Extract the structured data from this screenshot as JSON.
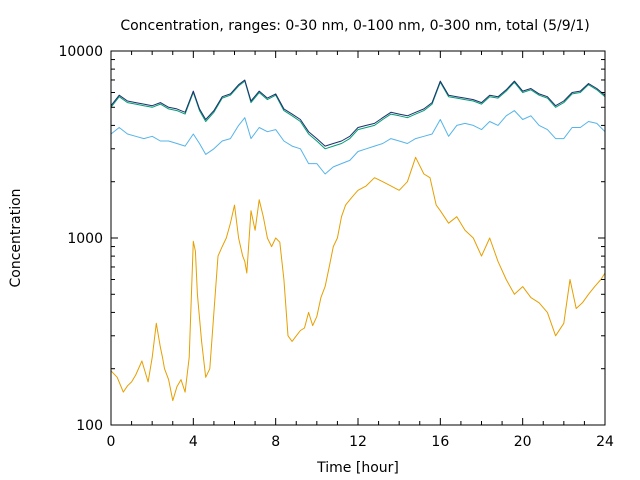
{
  "chart_data": {
    "type": "line",
    "title": "Concentration, ranges: 0-30 nm, 0-100 nm, 0-300 nm, total (5/9/1)",
    "xlabel": "Time [hour]",
    "ylabel": "Concentration",
    "xlim": [
      0,
      24
    ],
    "ylim": [
      100,
      10000
    ],
    "yscale": "log",
    "grid": false,
    "legend": "none",
    "xticks": [
      "0",
      "4",
      "8",
      "12",
      "16",
      "20",
      "24"
    ],
    "yticks": [
      "100",
      "1000",
      "10000"
    ],
    "series": [
      {
        "color": "#e69f00",
        "x": [
          0,
          0.3,
          0.6,
          0.8,
          1.0,
          1.2,
          1.5,
          1.8,
          2.0,
          2.2,
          2.4,
          2.5,
          2.6,
          2.8,
          3.0,
          3.2,
          3.4,
          3.6,
          3.8,
          4.0,
          4.1,
          4.2,
          4.4,
          4.6,
          4.8,
          5.0,
          5.2,
          5.4,
          5.6,
          5.8,
          6.0,
          6.2,
          6.4,
          6.5,
          6.6,
          6.8,
          7.0,
          7.2,
          7.4,
          7.6,
          7.8,
          8.0,
          8.2,
          8.4,
          8.6,
          8.8,
          9.0,
          9.2,
          9.4,
          9.6,
          9.8,
          10.0,
          10.2,
          10.4,
          10.6,
          10.8,
          11.0,
          11.2,
          11.4,
          11.6,
          11.8,
          12.0,
          12.4,
          12.8,
          13.2,
          13.6,
          14.0,
          14.4,
          14.8,
          15.2,
          15.5,
          15.8,
          16.0,
          16.4,
          16.8,
          17.2,
          17.6,
          18.0,
          18.4,
          18.8,
          19.2,
          19.6,
          20.0,
          20.4,
          20.8,
          21.2,
          21.6,
          22.0,
          22.3,
          22.6,
          22.9,
          23.2,
          23.5,
          23.8,
          24.0
        ],
        "y": [
          195,
          180,
          150,
          162,
          170,
          185,
          220,
          170,
          230,
          350,
          260,
          230,
          200,
          175,
          135,
          160,
          175,
          150,
          230,
          960,
          850,
          500,
          280,
          180,
          200,
          400,
          800,
          900,
          1000,
          1200,
          1500,
          1000,
          800,
          750,
          650,
          1400,
          1100,
          1600,
          1300,
          1000,
          900,
          1000,
          950,
          600,
          300,
          280,
          300,
          320,
          330,
          400,
          340,
          380,
          480,
          550,
          700,
          900,
          1000,
          1300,
          1500,
          1600,
          1700,
          1800,
          1900,
          2100,
          2000,
          1900,
          1800,
          2000,
          2700,
          2200,
          2100,
          1500,
          1400,
          1200,
          1300,
          1100,
          1000,
          800,
          1000,
          750,
          600,
          500,
          550,
          480,
          450,
          400,
          300,
          350,
          600,
          420,
          450,
          500,
          550,
          600,
          650
        ]
      },
      {
        "color": "#56b4e9",
        "x": [
          0,
          0.4,
          0.8,
          1.2,
          1.6,
          2.0,
          2.4,
          2.8,
          3.2,
          3.6,
          4.0,
          4.3,
          4.6,
          5.0,
          5.4,
          5.8,
          6.2,
          6.5,
          6.8,
          7.2,
          7.6,
          8.0,
          8.4,
          8.8,
          9.2,
          9.6,
          10.0,
          10.4,
          10.8,
          11.2,
          11.6,
          12.0,
          12.4,
          12.8,
          13.2,
          13.6,
          14.0,
          14.4,
          14.8,
          15.2,
          15.6,
          16.0,
          16.4,
          16.8,
          17.2,
          17.6,
          18.0,
          18.4,
          18.8,
          19.2,
          19.6,
          20.0,
          20.4,
          20.8,
          21.2,
          21.6,
          22.0,
          22.4,
          22.8,
          23.2,
          23.6,
          24.0
        ],
        "y": [
          3600,
          3900,
          3600,
          3500,
          3400,
          3500,
          3300,
          3300,
          3200,
          3100,
          3600,
          3200,
          2800,
          3000,
          3300,
          3400,
          4000,
          4400,
          3400,
          3900,
          3700,
          3800,
          3300,
          3100,
          3000,
          2500,
          2500,
          2200,
          2400,
          2500,
          2600,
          2900,
          3000,
          3100,
          3200,
          3400,
          3300,
          3200,
          3400,
          3500,
          3600,
          4300,
          3500,
          4000,
          4100,
          4000,
          3800,
          4200,
          4000,
          4500,
          4800,
          4300,
          4500,
          4000,
          3800,
          3400,
          3400,
          3900,
          3900,
          4200,
          4100,
          3700
        ]
      },
      {
        "color": "#009e73",
        "x": [
          0,
          0.4,
          0.8,
          1.2,
          1.6,
          2.0,
          2.4,
          2.8,
          3.2,
          3.6,
          4.0,
          4.3,
          4.6,
          5.0,
          5.4,
          5.8,
          6.2,
          6.5,
          6.8,
          7.2,
          7.6,
          8.0,
          8.4,
          8.8,
          9.2,
          9.6,
          10.0,
          10.4,
          10.8,
          11.2,
          11.6,
          12.0,
          12.4,
          12.8,
          13.2,
          13.6,
          14.0,
          14.4,
          14.8,
          15.2,
          15.6,
          16.0,
          16.4,
          16.8,
          17.2,
          17.6,
          18.0,
          18.4,
          18.8,
          19.2,
          19.6,
          20.0,
          20.4,
          20.8,
          21.2,
          21.6,
          22.0,
          22.4,
          22.8,
          23.2,
          23.6,
          24.0
        ],
        "y": [
          5000,
          5700,
          5300,
          5200,
          5100,
          5000,
          5200,
          4900,
          4800,
          4600,
          6000,
          4800,
          4200,
          4700,
          5600,
          5800,
          6500,
          6900,
          5300,
          6000,
          5500,
          5800,
          4800,
          4500,
          4200,
          3600,
          3300,
          3000,
          3100,
          3200,
          3400,
          3800,
          3900,
          4000,
          4300,
          4600,
          4500,
          4400,
          4600,
          4800,
          5200,
          6800,
          5700,
          5600,
          5500,
          5400,
          5200,
          5700,
          5600,
          6100,
          6800,
          6000,
          6200,
          5800,
          5600,
          5000,
          5300,
          5900,
          6000,
          6600,
          6200,
          5700
        ]
      },
      {
        "color": "#1f2f6f",
        "x": [
          0,
          0.4,
          0.8,
          1.2,
          1.6,
          2.0,
          2.4,
          2.8,
          3.2,
          3.6,
          4.0,
          4.3,
          4.6,
          5.0,
          5.4,
          5.8,
          6.2,
          6.5,
          6.8,
          7.2,
          7.6,
          8.0,
          8.4,
          8.8,
          9.2,
          9.6,
          10.0,
          10.4,
          10.8,
          11.2,
          11.6,
          12.0,
          12.4,
          12.8,
          13.2,
          13.6,
          14.0,
          14.4,
          14.8,
          15.2,
          15.6,
          16.0,
          16.4,
          16.8,
          17.2,
          17.6,
          18.0,
          18.4,
          18.8,
          19.2,
          19.6,
          20.0,
          20.4,
          20.8,
          21.2,
          21.6,
          22.0,
          22.4,
          22.8,
          23.2,
          23.6,
          24.0
        ],
        "y": [
          5100,
          5800,
          5400,
          5300,
          5200,
          5100,
          5300,
          5000,
          4900,
          4700,
          6100,
          4900,
          4300,
          4800,
          5700,
          5900,
          6600,
          7000,
          5400,
          6100,
          5600,
          5900,
          4900,
          4600,
          4300,
          3700,
          3400,
          3100,
          3200,
          3300,
          3500,
          3900,
          4000,
          4100,
          4400,
          4700,
          4600,
          4500,
          4700,
          4900,
          5300,
          6900,
          5800,
          5700,
          5600,
          5500,
          5300,
          5800,
          5700,
          6200,
          6900,
          6100,
          6300,
          5900,
          5700,
          5100,
          5400,
          6000,
          6100,
          6700,
          6300,
          5800
        ]
      }
    ]
  }
}
